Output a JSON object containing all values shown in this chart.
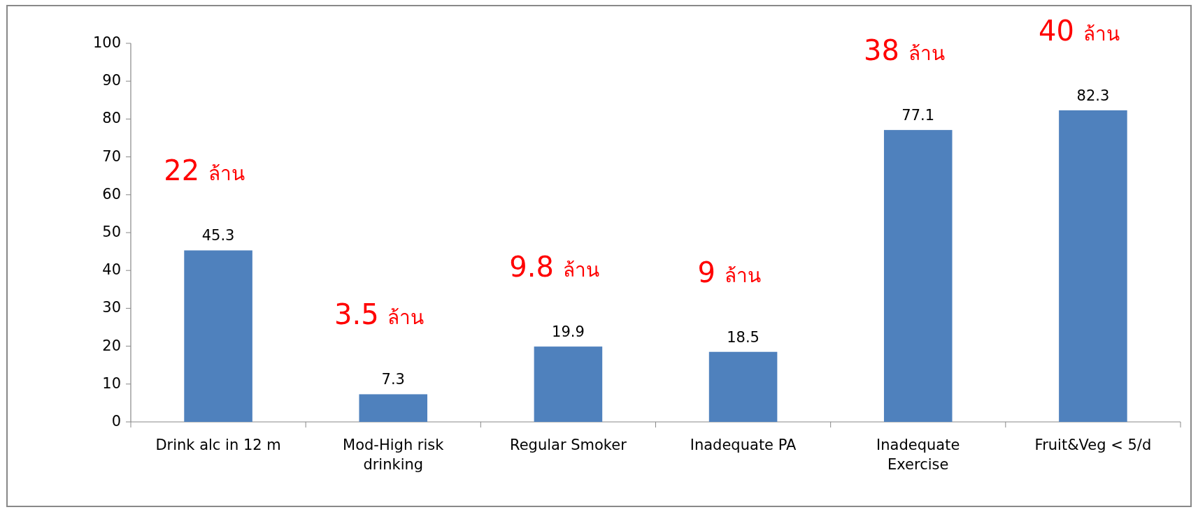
{
  "chart_data": {
    "type": "bar",
    "categories": [
      "Drink alc in 12 m",
      "Mod-High risk\ndrinking",
      "Regular Smoker",
      "Inadequate PA",
      "Inadequate\nExercise",
      "Fruit&Veg  < 5/d"
    ],
    "values": [
      45.3,
      7.3,
      19.9,
      18.5,
      77.1,
      82.3
    ],
    "color": "#4f81bd",
    "data_labels": true,
    "ylim": [
      0,
      100
    ],
    "yticks": [
      0,
      10,
      20,
      30,
      40,
      50,
      60,
      70,
      80,
      90,
      100
    ],
    "annotations": [
      "22 ล้าน",
      "3.5 ล้าน",
      "9.8 ล้าน",
      "9 ล้าน",
      "38 ล้าน",
      "40 ล้าน"
    ]
  }
}
